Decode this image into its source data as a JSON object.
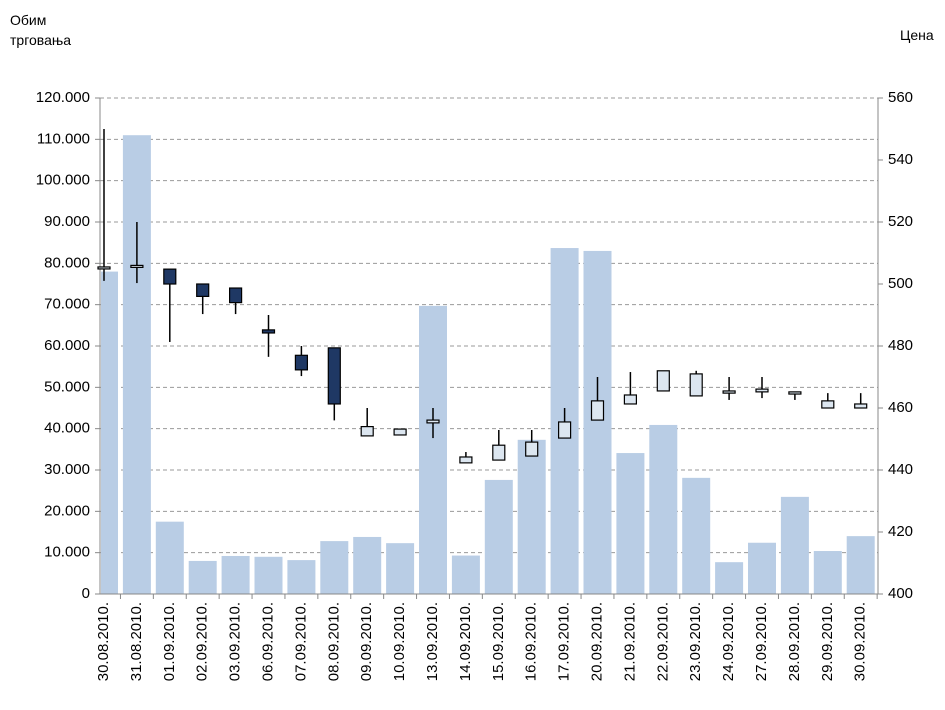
{
  "chart_data": {
    "type": "bar",
    "y_label": "Обим трговања",
    "y2_label": "Цена",
    "categories": [
      "30.08.2010.",
      "31.08.2010.",
      "01.09.2010.",
      "02.09.2010.",
      "03.09.2010.",
      "06.09.2010.",
      "07.09.2010.",
      "08.09.2010.",
      "09.09.2010.",
      "10.09.2010.",
      "13.09.2010.",
      "14.09.2010.",
      "15.09.2010.",
      "16.09.2010.",
      "17.09.2010.",
      "20.09.2010.",
      "21.09.2010.",
      "22.09.2010.",
      "23.09.2010.",
      "24.09.2010.",
      "27.09.2010.",
      "28.09.2010.",
      "29.09.2010.",
      "30.09.2010."
    ],
    "values": [
      78000,
      111000,
      17500,
      8000,
      9200,
      9000,
      8200,
      12800,
      13800,
      12300,
      69700,
      9300,
      27600,
      37300,
      83700,
      83000,
      34100,
      40900,
      28100,
      7700,
      12400,
      23500,
      10400,
      14000
    ],
    "color": "#b9cde5",
    "ylim": [
      0,
      120000
    ],
    "yticks": [
      0,
      {
        "value": 10000,
        "label": "10.000"
      },
      {
        "value": 20000,
        "label": "20.000"
      },
      {
        "value": 30000,
        "label": "30.000"
      },
      {
        "value": 40000,
        "label": "40.000"
      },
      {
        "value": 50000,
        "label": "50.000"
      },
      {
        "value": 60000,
        "label": "60.000"
      },
      {
        "value": 70000,
        "label": "70.000"
      },
      {
        "value": 80000,
        "label": "80.000"
      },
      {
        "value": 90000,
        "label": "90.000"
      },
      {
        "value": 100000,
        "label": "100.000"
      },
      {
        "value": 110000,
        "label": "110.000"
      },
      {
        "value": 120000,
        "label": "120.000"
      }
    ],
    "y2lim": [
      400,
      560
    ],
    "y2ticks": [
      400,
      420,
      440,
      460,
      480,
      500,
      520,
      540,
      560
    ],
    "grid": true,
    "candlestick": {
      "type": "candlestick",
      "axis": "y2",
      "up_color": "#dce6f0",
      "down_color": "#1f3864",
      "open": [
        505,
        505.5,
        504.8,
        500,
        498.7,
        485.2,
        477,
        479.4,
        451,
        451.3,
        455.2,
        442.3,
        443.2,
        444.5,
        450.3,
        456.1,
        461.3,
        465.5,
        463.9,
        464.8,
        465.2,
        464.5,
        460,
        460
      ],
      "high": [
        550,
        520,
        504.8,
        500,
        498.7,
        490,
        480,
        479.4,
        460,
        453.2,
        460,
        445.8,
        452.9,
        452.9,
        460,
        470,
        471.6,
        472,
        472,
        470,
        470,
        465.2,
        464.8,
        464.8
      ],
      "low": [
        501,
        500.3,
        481.3,
        490.3,
        490.3,
        476.5,
        470.3,
        456,
        451,
        451.3,
        450.3,
        442.3,
        443.2,
        444.5,
        450.3,
        456.1,
        461.3,
        465.5,
        463.9,
        462.6,
        463.2,
        462.6,
        460,
        460
      ],
      "close": [
        505.5,
        506,
        500,
        496,
        494,
        484.2,
        472.3,
        461.3,
        454,
        453.2,
        456.1,
        444.2,
        448,
        449,
        455.5,
        462.3,
        464.2,
        472,
        471,
        465.5,
        466.1,
        465.2,
        462.3,
        461.3
      ]
    }
  }
}
